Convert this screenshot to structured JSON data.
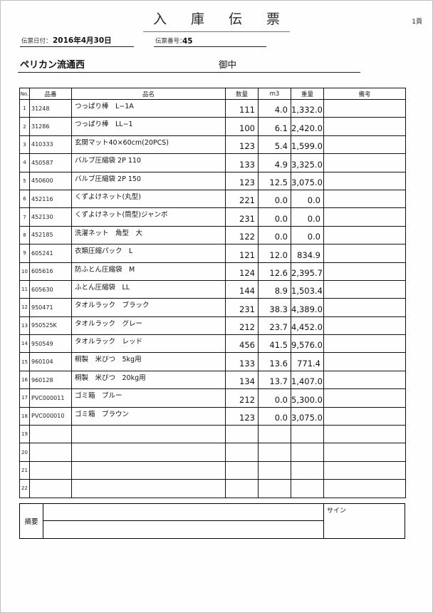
{
  "page": {
    "number_label": "1頁"
  },
  "header": {
    "title": "入 庫 伝 票",
    "date_label": "伝票日付：",
    "date_value": "2016年4月30日",
    "slip_no_label": "伝票番号：",
    "slip_no_value": "45",
    "company_name": "ペリカン流通西",
    "honorific": "御中"
  },
  "table": {
    "columns": [
      "No.",
      "品番",
      "品名",
      "数量",
      "m3",
      "重量",
      "備考"
    ],
    "rows": [
      {
        "no": "1",
        "code": "31248",
        "name": "つっぱり棒　L−1A",
        "qty": "111",
        "m3": "4.0",
        "weight": "1,332.0",
        "note": ""
      },
      {
        "no": "2",
        "code": "31286",
        "name": "つっぱり棒　LL−1",
        "qty": "100",
        "m3": "6.1",
        "weight": "2,420.0",
        "note": ""
      },
      {
        "no": "3",
        "code": "410333",
        "name": "玄関マット40×60cm(20PCS)",
        "qty": "123",
        "m3": "5.4",
        "weight": "1,599.0",
        "note": ""
      },
      {
        "no": "4",
        "code": "450587",
        "name": "バルブ圧縮袋 2P 110",
        "qty": "133",
        "m3": "4.9",
        "weight": "3,325.0",
        "note": ""
      },
      {
        "no": "5",
        "code": "450600",
        "name": "バルブ圧縮袋 2P 150",
        "qty": "123",
        "m3": "12.5",
        "weight": "3,075.0",
        "note": ""
      },
      {
        "no": "6",
        "code": "452116",
        "name": "くずよけネット(丸型)",
        "qty": "221",
        "m3": "0.0",
        "weight": "0.0",
        "note": ""
      },
      {
        "no": "7",
        "code": "452130",
        "name": "くずよけネット(筒型)ジャンボ",
        "qty": "231",
        "m3": "0.0",
        "weight": "0.0",
        "note": ""
      },
      {
        "no": "8",
        "code": "452185",
        "name": "洗濯ネット　角型　大",
        "qty": "122",
        "m3": "0.0",
        "weight": "0.0",
        "note": ""
      },
      {
        "no": "9",
        "code": "605241",
        "name": "衣類圧縮パック　L",
        "qty": "121",
        "m3": "12.0",
        "weight": "834.9",
        "note": ""
      },
      {
        "no": "10",
        "code": "605616",
        "name": "防ふとん圧縮袋　M",
        "qty": "124",
        "m3": "12.6",
        "weight": "2,395.7",
        "note": ""
      },
      {
        "no": "11",
        "code": "605630",
        "name": "ふとん圧縮袋　LL",
        "qty": "144",
        "m3": "8.9",
        "weight": "1,503.4",
        "note": ""
      },
      {
        "no": "12",
        "code": "950471",
        "name": "タオルラック　ブラック",
        "qty": "231",
        "m3": "38.3",
        "weight": "4,389.0",
        "note": ""
      },
      {
        "no": "13",
        "code": "950525K",
        "name": "タオルラック　グレー",
        "qty": "212",
        "m3": "23.7",
        "weight": "4,452.0",
        "note": ""
      },
      {
        "no": "14",
        "code": "950549",
        "name": "タオルラック　レッド",
        "qty": "456",
        "m3": "41.5",
        "weight": "9,576.0",
        "note": ""
      },
      {
        "no": "15",
        "code": "960104",
        "name": "桐製　米びつ　5kg用",
        "qty": "133",
        "m3": "13.6",
        "weight": "771.4",
        "note": ""
      },
      {
        "no": "16",
        "code": "960128",
        "name": "桐製　米びつ　20kg用",
        "qty": "134",
        "m3": "13.7",
        "weight": "1,407.0",
        "note": ""
      },
      {
        "no": "17",
        "code": "PVC000011",
        "name": "ゴミ箱　ブルー",
        "qty": "212",
        "m3": "0.0",
        "weight": "5,300.0",
        "note": ""
      },
      {
        "no": "18",
        "code": "PVC000010",
        "name": "ゴミ箱　ブラウン",
        "qty": "123",
        "m3": "0.0",
        "weight": "3,075.0",
        "note": ""
      },
      {
        "no": "19",
        "code": "",
        "name": "",
        "qty": "",
        "m3": "",
        "weight": "",
        "note": ""
      },
      {
        "no": "20",
        "code": "",
        "name": "",
        "qty": "",
        "m3": "",
        "weight": "",
        "note": ""
      },
      {
        "no": "21",
        "code": "",
        "name": "",
        "qty": "",
        "m3": "",
        "weight": "",
        "note": ""
      },
      {
        "no": "22",
        "code": "",
        "name": "",
        "qty": "",
        "m3": "",
        "weight": "",
        "note": ""
      }
    ]
  },
  "footer": {
    "summary_label": "摘要",
    "sign_label": "サイン"
  }
}
